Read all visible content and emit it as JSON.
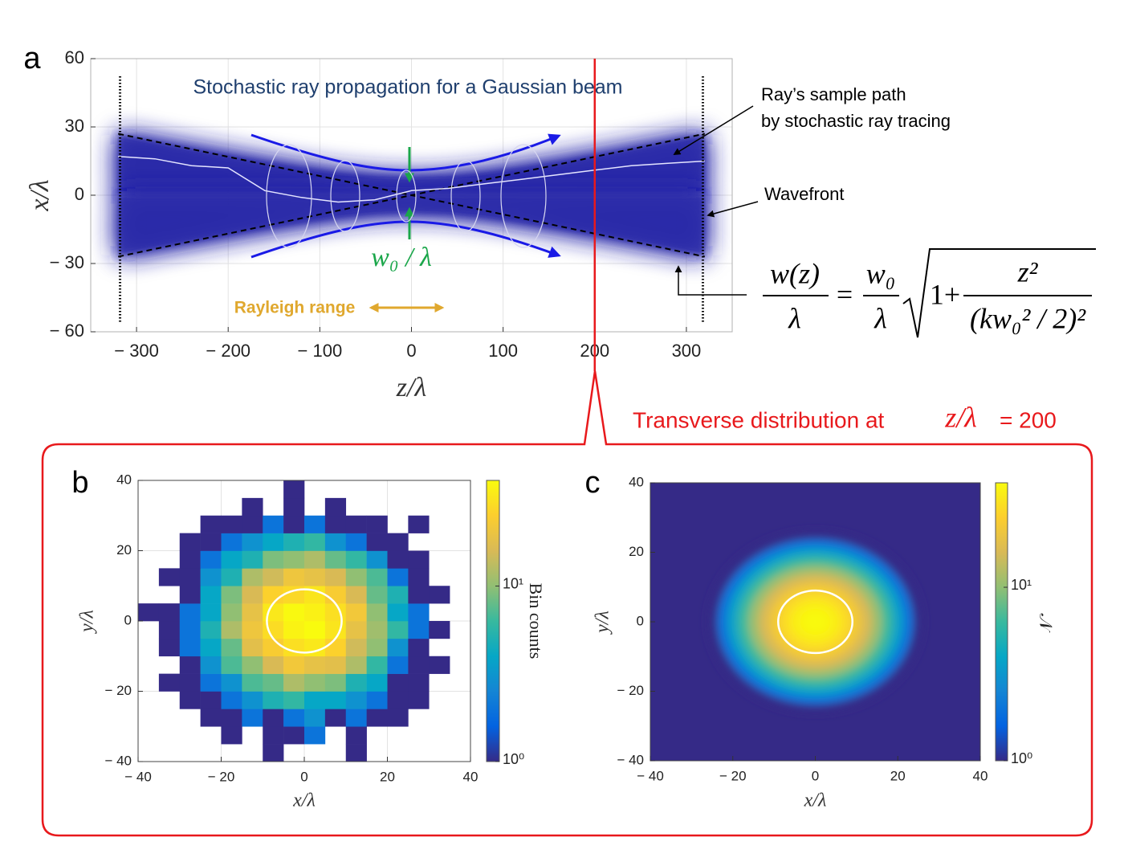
{
  "chart_data": [
    {
      "type": "line",
      "panel_label": "a",
      "title": "Stochastic ray propagation for a Gaussian beam",
      "xlabel": "z/λ",
      "ylabel": "x/λ",
      "xlim": [
        -350,
        350
      ],
      "ylim": [
        -60,
        60
      ],
      "xticks": [
        {
          "value": -300,
          "label": "− 300"
        },
        {
          "value": -200,
          "label": "− 200"
        },
        {
          "value": -100,
          "label": "− 100"
        },
        0,
        100,
        200,
        300
      ],
      "yticks": [
        {
          "value": -60,
          "label": "− 60"
        },
        {
          "value": -30,
          "label": "− 30"
        },
        0,
        30,
        60
      ],
      "grid": true,
      "series": [
        {
          "color": "#2d2da8",
          "style": "area",
          "x": [
            -320,
            -280,
            -240,
            -200,
            -160,
            -120,
            -80,
            -40,
            0,
            40,
            80,
            120,
            160,
            200,
            240,
            280,
            320
          ],
          "values": [
            26.8,
            23.8,
            20.8,
            17.9,
            15.1,
            12.5,
            10.2,
            8.6,
            8.0,
            8.6,
            10.2,
            12.5,
            15.1,
            17.9,
            20.8,
            23.8,
            26.8
          ]
        },
        {
          "color": "#2d2da8",
          "style": "area",
          "x": [
            -320,
            -280,
            -240,
            -200,
            -160,
            -120,
            -80,
            -40,
            0,
            40,
            80,
            120,
            160,
            200,
            240,
            280,
            320
          ],
          "values": [
            -26.8,
            -23.8,
            -20.8,
            -17.9,
            -15.1,
            -12.5,
            -10.2,
            -8.6,
            -8.0,
            -8.6,
            -10.2,
            -12.5,
            -15.1,
            -17.9,
            -20.8,
            -23.8,
            -26.8
          ]
        },
        {
          "color": "#000000",
          "style": "dashed",
          "x": [
            -320,
            320
          ],
          "values": [
            27,
            -27
          ]
        },
        {
          "color": "#000000",
          "style": "dashed",
          "x": [
            -320,
            320
          ],
          "values": [
            -27,
            27
          ]
        },
        {
          "color": "#e4e4ff",
          "style": "solid",
          "x": [
            -320,
            -280,
            -240,
            -200,
            -160,
            -120,
            -80,
            -40,
            0,
            40,
            80,
            120,
            160,
            200,
            240,
            280,
            320
          ],
          "values": [
            17,
            16,
            13,
            12,
            2,
            -1,
            -3,
            -2,
            2,
            3,
            5,
            7,
            9,
            11,
            13,
            14,
            15
          ]
        }
      ],
      "wavefront_z": [
        -318,
        318
      ],
      "marker_z": 200,
      "marker_color": "#e8191c",
      "annotations": {
        "sample_path": [
          "Ray’s sample path",
          "by stochastic ray tracing"
        ],
        "wavefront": "Wavefront",
        "waist": "w₀ / λ",
        "rayleigh": "Rayleigh range"
      },
      "equation": {
        "lhs_numerator": "w(z)",
        "lhs_denominator": "λ",
        "equals": "=",
        "rhs_numerator": "w₀",
        "rhs_denominator": "λ",
        "radicand": "1+",
        "fraction_numerator": "z²",
        "fraction_denominator": "(kw₀² / 2)²"
      },
      "caption": {
        "text": "Transverse distribution at",
        "variable": "z/λ",
        "value": "= 200"
      }
    },
    {
      "type": "heatmap",
      "panel_label": "b",
      "xlabel": "x/λ",
      "ylabel": "y/λ",
      "xlim": [
        -40,
        40
      ],
      "ylim": [
        -40,
        40
      ],
      "xticks": [
        {
          "value": -40,
          "label": "− 40"
        },
        {
          "value": -20,
          "label": "− 20"
        },
        0,
        20,
        40
      ],
      "yticks": [
        {
          "value": -40,
          "label": "− 40"
        },
        {
          "value": -20,
          "label": "− 20"
        },
        0,
        20,
        40
      ],
      "grid": true,
      "xbins": [
        -40,
        -35,
        -30,
        -25,
        -20,
        -15,
        -10,
        -5,
        0,
        5,
        10,
        15,
        20,
        25,
        30,
        35,
        40
      ],
      "ybins": [
        -40,
        -35,
        -30,
        -25,
        -20,
        -15,
        -10,
        -5,
        0,
        5,
        10,
        15,
        20,
        25,
        30,
        35,
        40
      ],
      "values": [
        [
          null,
          null,
          null,
          null,
          null,
          null,
          1,
          null,
          null,
          null,
          1,
          null,
          null,
          null,
          null,
          null
        ],
        [
          null,
          null,
          null,
          null,
          1,
          null,
          1,
          1,
          2,
          null,
          1,
          null,
          null,
          null,
          null,
          null
        ],
        [
          null,
          null,
          null,
          1,
          1,
          2,
          1,
          2,
          3,
          1,
          2,
          1,
          1,
          null,
          null,
          null
        ],
        [
          null,
          null,
          1,
          1,
          2,
          3,
          5,
          6,
          4,
          4,
          3,
          2,
          1,
          1,
          null,
          null
        ],
        [
          null,
          1,
          1,
          2,
          3,
          7,
          8,
          12,
          10,
          9,
          5,
          4,
          1,
          1,
          null,
          null
        ],
        [
          null,
          null,
          1,
          3,
          7,
          10,
          16,
          22,
          19,
          18,
          12,
          6,
          2,
          1,
          1,
          null
        ],
        [
          null,
          1,
          2,
          4,
          8,
          18,
          24,
          30,
          33,
          26,
          15,
          10,
          3,
          1,
          null,
          null
        ],
        [
          null,
          1,
          2,
          5,
          12,
          21,
          29,
          37,
          40,
          32,
          19,
          11,
          6,
          2,
          1,
          null
        ],
        [
          1,
          1,
          2,
          4,
          10,
          19,
          33,
          39,
          36,
          30,
          22,
          10,
          4,
          2,
          null,
          null
        ],
        [
          null,
          null,
          1,
          4,
          9,
          16,
          26,
          28,
          32,
          24,
          16,
          8,
          5,
          1,
          1,
          null
        ],
        [
          null,
          1,
          1,
          3,
          5,
          12,
          15,
          21,
          19,
          16,
          10,
          7,
          2,
          1,
          null,
          null
        ],
        [
          null,
          null,
          1,
          2,
          4,
          5,
          9,
          10,
          12,
          8,
          6,
          3,
          1,
          1,
          null,
          null
        ],
        [
          null,
          null,
          1,
          1,
          2,
          3,
          4,
          5,
          6,
          3,
          2,
          1,
          1,
          null,
          null,
          null
        ],
        [
          null,
          null,
          null,
          1,
          1,
          1,
          2,
          1,
          2,
          1,
          1,
          1,
          null,
          1,
          null,
          null
        ],
        [
          null,
          null,
          null,
          null,
          null,
          1,
          null,
          1,
          null,
          1,
          null,
          null,
          null,
          null,
          null,
          null
        ],
        [
          null,
          null,
          null,
          null,
          null,
          null,
          null,
          1,
          null,
          null,
          null,
          null,
          null,
          null,
          null,
          null
        ]
      ],
      "clim": [
        1,
        40
      ],
      "log_color": true,
      "colormap": [
        "#352a87",
        "#0363e1",
        "#1485d4",
        "#06a7c6",
        "#38b99e",
        "#92bf73",
        "#d9ba56",
        "#fcce2e",
        "#f9fb0e"
      ],
      "colorbar": {
        "label": "Bin counts",
        "ticks": [
          {
            "value": 1,
            "label": "10⁰"
          },
          {
            "value": 10,
            "label": "10¹"
          }
        ]
      },
      "contour": {
        "radius": 9,
        "color": "#ffffff"
      }
    },
    {
      "type": "radial",
      "panel_label": "c",
      "xlabel": "x/λ",
      "ylabel": "y/λ",
      "xlim": [
        -40,
        40
      ],
      "ylim": [
        -40,
        40
      ],
      "xticks": [
        {
          "value": -40,
          "label": "− 40"
        },
        {
          "value": -20,
          "label": "− 20"
        },
        0,
        20,
        40
      ],
      "yticks": [
        {
          "value": -40,
          "label": "− 40"
        },
        {
          "value": -20,
          "label": "− 20"
        },
        0,
        20,
        40
      ],
      "grid": false,
      "r": [
        0,
        2.5,
        5,
        7.5,
        10,
        12.5,
        15,
        17.5,
        20,
        22.5,
        25
      ],
      "values": [
        40,
        38.6,
        34.5,
        28.7,
        22.1,
        15.9,
        10.6,
        6.5,
        3.8,
        2.0,
        1.0
      ],
      "clim": [
        1,
        40
      ],
      "log_color": true,
      "colormap": [
        "#352a87",
        "#0363e1",
        "#1485d4",
        "#06a7c6",
        "#38b99e",
        "#92bf73",
        "#d9ba56",
        "#fcce2e",
        "#f9fb0e"
      ],
      "colorbar": {
        "label": "𝒩",
        "ticks": [
          {
            "value": 1,
            "label": "10⁰"
          },
          {
            "value": 10,
            "label": "10¹"
          }
        ]
      },
      "contour": {
        "radius": 9,
        "color": "#ffffff"
      }
    }
  ]
}
